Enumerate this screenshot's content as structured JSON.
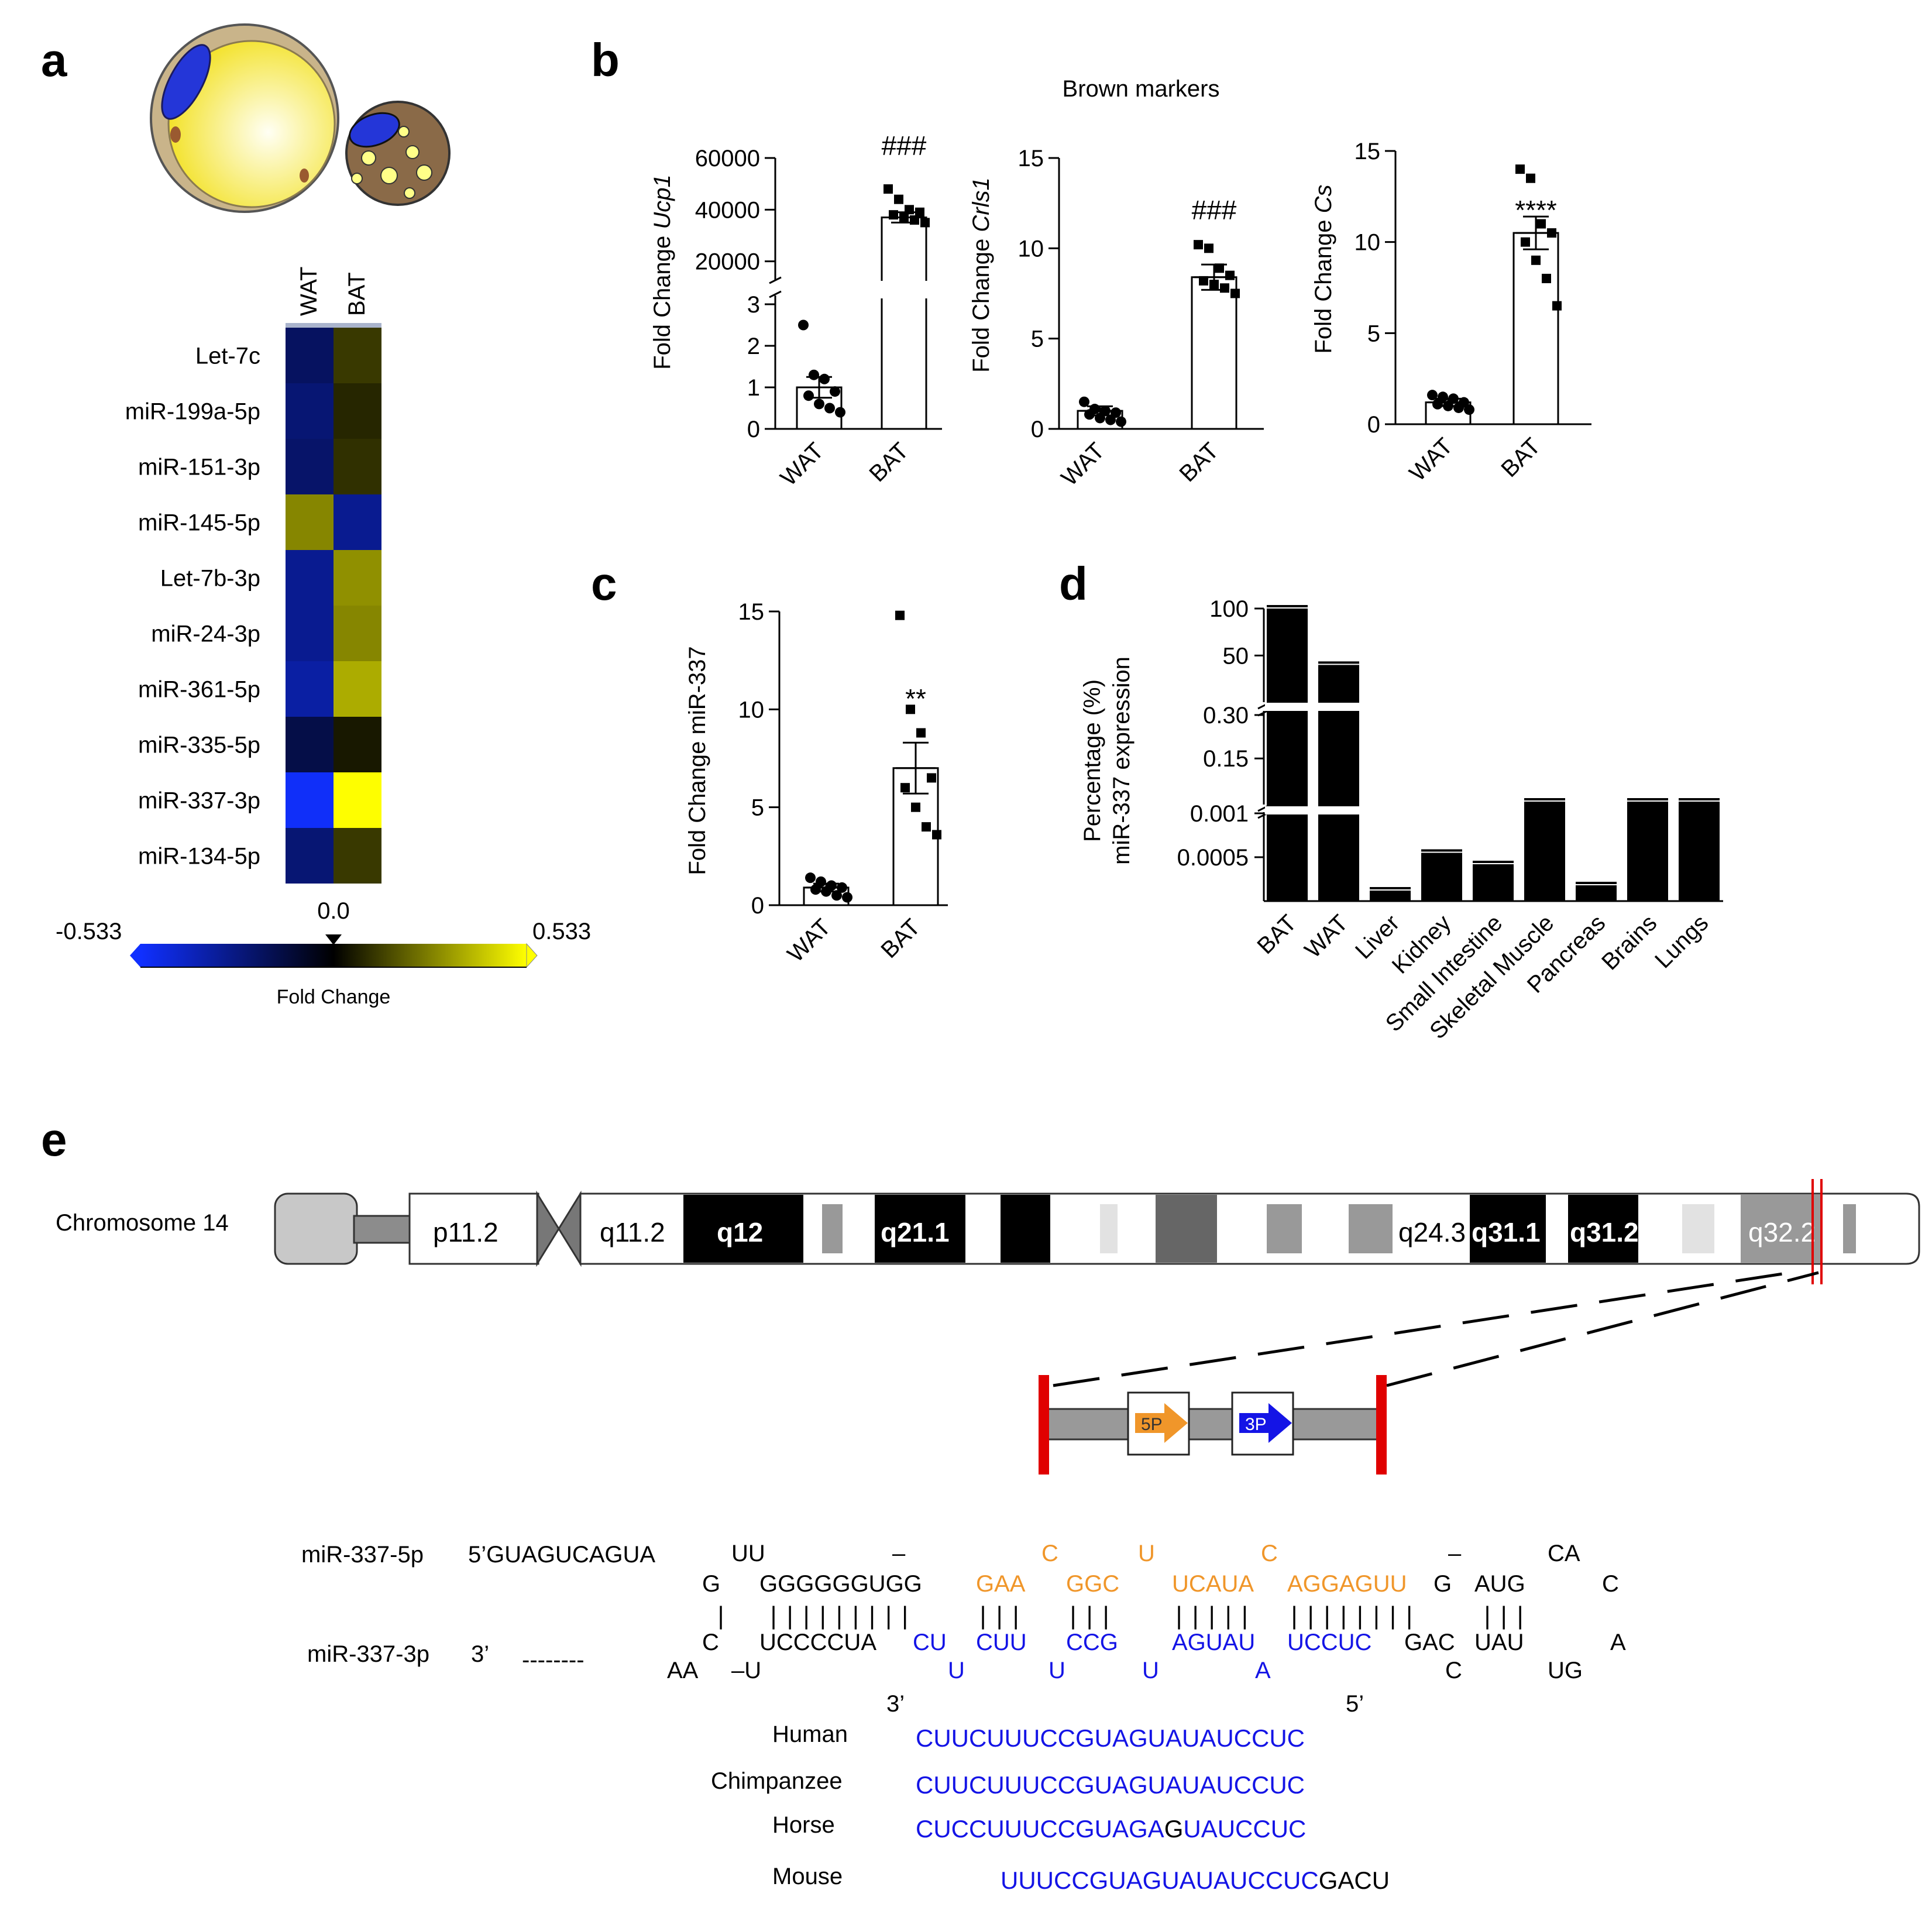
{
  "panels": {
    "a": "a",
    "b": "b",
    "c": "c",
    "d": "d",
    "e": "e"
  },
  "heatmap": {
    "columns": [
      "WAT",
      "BAT"
    ],
    "rows": [
      "Let-7c",
      "miR-199a-5p",
      "miR-151-3p",
      "miR-145-5p",
      "Let-7b-3p",
      "miR-24-3p",
      "miR-361-5p",
      "miR-335-5p",
      "miR-337-3p",
      "miR-134-5p"
    ],
    "values": [
      [
        -0.2,
        0.12
      ],
      [
        -0.24,
        0.08
      ],
      [
        -0.22,
        0.1
      ],
      [
        0.28,
        -0.3
      ],
      [
        -0.3,
        0.3
      ],
      [
        -0.3,
        0.28
      ],
      [
        -0.34,
        0.36
      ],
      [
        -0.15,
        0.05
      ],
      [
        -0.52,
        0.53
      ],
      [
        -0.24,
        0.12
      ]
    ],
    "colors": {
      "low": "#1030ff",
      "mid": "#000000",
      "high": "#ffff00"
    },
    "scale": {
      "min": "-0.533",
      "mid": "0.0",
      "max": "0.533",
      "label": "Fold Change"
    }
  },
  "brown_markers_title": "Brown markers",
  "chart_data": [
    {
      "id": "b-ucp1",
      "type": "bar",
      "categories": [
        "WAT",
        "BAT"
      ],
      "values": [
        1.0,
        37000
      ],
      "errors": [
        0.25,
        2000
      ],
      "ylabel_prefix": "Fold Change",
      "ylabel_gene": "Ucp1",
      "annotation": "###",
      "yticks_lower": [
        "0",
        "1",
        "2",
        "3"
      ],
      "yticks_upper": [
        "20000",
        "40000",
        "60000"
      ],
      "points": {
        "WAT": [
          2.5,
          1.3,
          1.2,
          0.9,
          0.8,
          0.6,
          0.5,
          0.4
        ],
        "BAT": [
          48000,
          44000,
          40000,
          39000,
          38000,
          37000,
          36000,
          35000
        ]
      }
    },
    {
      "id": "b-crls1",
      "type": "bar",
      "categories": [
        "WAT",
        "BAT"
      ],
      "values": [
        1.0,
        8.4
      ],
      "errors": [
        0.25,
        0.7
      ],
      "ylabel_prefix": "Fold Change",
      "ylabel_gene": "Crls1",
      "annotation": "###",
      "ylim": [
        0,
        15
      ],
      "yticks": [
        "0",
        "5",
        "10",
        "15"
      ],
      "points": {
        "WAT": [
          1.5,
          1.1,
          1.0,
          0.9,
          0.8,
          0.6,
          0.5,
          0.4
        ],
        "BAT": [
          10.2,
          10.0,
          8.9,
          8.5,
          8.2,
          8.0,
          7.8,
          7.5
        ]
      }
    },
    {
      "id": "b-cs",
      "type": "bar",
      "categories": [
        "WAT",
        "BAT"
      ],
      "values": [
        1.2,
        10.5
      ],
      "errors": [
        0.2,
        0.9
      ],
      "ylabel_prefix": "Fold Change",
      "ylabel_gene": "Cs",
      "annotation": "****",
      "ylim": [
        0,
        15
      ],
      "yticks": [
        "0",
        "5",
        "10",
        "15"
      ],
      "points": {
        "WAT": [
          1.6,
          1.5,
          1.4,
          1.2,
          1.1,
          1.0,
          0.9,
          0.8
        ],
        "BAT": [
          14.0,
          13.5,
          11.0,
          10.5,
          10.0,
          9.0,
          8.0,
          6.5
        ]
      }
    },
    {
      "id": "c-mir337",
      "type": "bar",
      "categories": [
        "WAT",
        "BAT"
      ],
      "values": [
        0.9,
        7.0
      ],
      "errors": [
        0.2,
        1.3
      ],
      "ylabel": "Fold Change miR-337",
      "annotation": "**",
      "ylim": [
        0,
        15
      ],
      "yticks": [
        "0",
        "5",
        "10",
        "15"
      ],
      "points": {
        "WAT": [
          1.4,
          1.2,
          1.0,
          0.9,
          0.8,
          0.7,
          0.5,
          0.4
        ],
        "BAT": [
          14.8,
          10.0,
          8.8,
          6.5,
          6.0,
          5.0,
          4.0,
          3.6
        ]
      }
    },
    {
      "id": "d-tissues",
      "type": "bar",
      "categories": [
        "BAT",
        "WAT",
        "Liver",
        "Kidney",
        "Small Intestine",
        "Skeletal Muscle",
        "Pancreas",
        "Brains",
        "Lungs"
      ],
      "values": [
        100,
        40,
        0.00012,
        0.00055,
        0.00042,
        0.00105,
        0.00018,
        0.00108,
        0.00102
      ],
      "ylabel_line1": "Percentage (%)",
      "ylabel_line2": "miR-337 expression",
      "yticks": [
        "0.0005",
        "0.001",
        "0.15",
        "0.30",
        "50",
        "100"
      ]
    }
  ],
  "chromosome": {
    "label": "Chromosome 14",
    "bands": [
      "p11.2",
      "q11.2",
      "q12",
      "q21.1",
      "q24.3",
      "q31.1",
      "q31.2",
      "q32.2"
    ],
    "arm_labels": {
      "5p": "5P",
      "3p": "3P"
    },
    "colors": {
      "mir5p": "#f0962a",
      "mir3p": "#1414e6",
      "marker": "#e00000"
    }
  },
  "hairpin": {
    "label_5p": "miR-337-5p",
    "prefix_5p": "5’GUAGUCAGUA",
    "label_3p": "miR-337-3p",
    "prefix_3p": "3’",
    "dashes": "--------",
    "top_loop": [
      [
        "UU",
        0
      ],
      [
        "–",
        0
      ],
      [
        "C",
        1
      ],
      [
        "U",
        1
      ],
      [
        "C",
        1
      ],
      [
        "–",
        0
      ],
      [
        "CA",
        0
      ]
    ],
    "top_pair": [
      [
        "G",
        0
      ],
      [
        "GGGGGGUGG",
        0
      ],
      [
        "GAA",
        1
      ],
      [
        "GGC",
        1
      ],
      [
        "UCAUA",
        1
      ],
      [
        "AGGAGUU",
        1
      ],
      [
        "G",
        0
      ],
      [
        "AUG",
        0
      ],
      [
        "C",
        0
      ]
    ],
    "bars": [
      "|",
      "|||||||||",
      "|||",
      "|||",
      "|||||",
      "||||||||",
      "|||"
    ],
    "bot_pair": [
      [
        "C",
        0
      ],
      [
        "UCCCCUA",
        0
      ],
      [
        "CU",
        2
      ],
      [
        "CUU",
        2
      ],
      [
        "CCG",
        2
      ],
      [
        "AGUAU",
        2
      ],
      [
        "UCCUC",
        2
      ],
      [
        "GAC",
        0
      ],
      [
        "UAU",
        0
      ],
      [
        "A",
        0
      ]
    ],
    "bot_loop": [
      [
        "AA",
        0
      ],
      [
        "–U",
        0
      ],
      [
        "U",
        2
      ],
      [
        "U",
        2
      ],
      [
        "U",
        2
      ],
      [
        "A",
        2
      ],
      [
        "C",
        0
      ],
      [
        "UG",
        0
      ]
    ],
    "end_3": "3’",
    "end_5": "5’"
  },
  "alignment": [
    {
      "species": "Human",
      "seq": "CUUCUUUCCGUAGUAUAUCCUC",
      "tail": ""
    },
    {
      "species": "Chimpanzee",
      "seq": "CUUCUUUCCGUAGUAUAUCCUC",
      "tail": ""
    },
    {
      "species": "Horse",
      "seq": "CUCCUUUCCGUAGA",
      "tail": "",
      "mid": "G",
      "rest": "UAUCCUC"
    },
    {
      "species": "Mouse",
      "seq": "UUUCCGUAGUAUAUCCUC",
      "tail": "GACU"
    }
  ]
}
